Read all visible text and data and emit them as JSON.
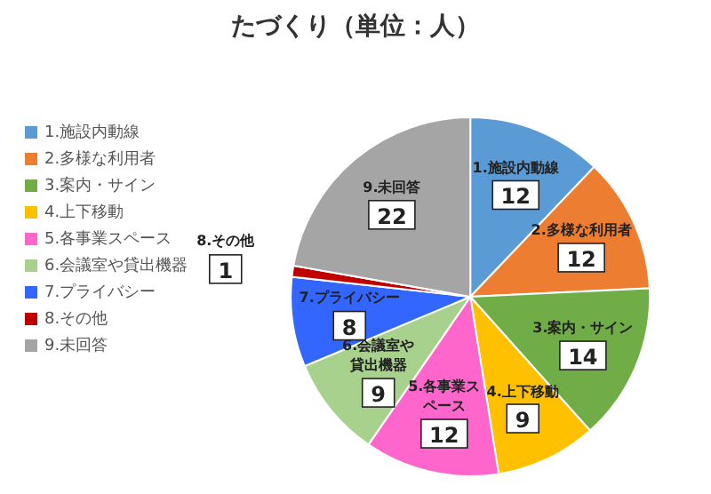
{
  "chart_data": {
    "type": "pie",
    "title": "たづくり（単位：人）",
    "categories": [
      "1.施設内動線",
      "2.多様な利用者",
      "3.案内・サイン",
      "4.上下移動",
      "5.各事業スペース",
      "6.会議室や貸出機器",
      "7.プライバシー",
      "8.その他",
      "9.未回答"
    ],
    "values": [
      12,
      12,
      14,
      9,
      12,
      9,
      8,
      1,
      22
    ],
    "colors": [
      "#5b9bd5",
      "#ed7d31",
      "#70ad47",
      "#ffc000",
      "#ff66cc",
      "#a9d18e",
      "#3366ff",
      "#c00000",
      "#a5a5a5"
    ],
    "legend": "left",
    "data_labels": true
  }
}
